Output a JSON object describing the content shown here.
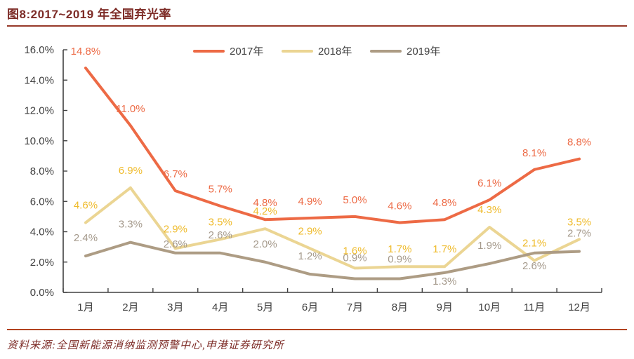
{
  "header": {
    "title": "图8:2017~2019 年全国弃光率"
  },
  "footer": {
    "source": "资料来源:全国新能源消纳监测预警中心,申港证券研究所"
  },
  "colors": {
    "title_text": "#7D2B26",
    "title_rule": "#97392A",
    "footer_rule": "#B2431F",
    "axis": "#404040",
    "tick_label": "#3F3F3F"
  },
  "chart_data": {
    "type": "line",
    "title": "图8:2017~2019 年全国弃光率",
    "xlabel": "",
    "ylabel": "",
    "ylim": [
      0,
      16
    ],
    "grid": false,
    "legend_position": "top",
    "y_ticks": [
      "16.0%",
      "14.0%",
      "12.0%",
      "10.0%",
      "8.0%",
      "6.0%",
      "4.0%",
      "2.0%",
      "0.0%"
    ],
    "categories": [
      "1月",
      "2月",
      "3月",
      "4月",
      "5月",
      "6月",
      "7月",
      "8月",
      "9月",
      "10月",
      "11月",
      "12月"
    ],
    "series": [
      {
        "name": "2017年",
        "color": "#ED6A45",
        "label_color": "#ED6A45",
        "values": [
          14.8,
          11.0,
          6.7,
          5.7,
          4.8,
          4.9,
          5.0,
          4.6,
          4.8,
          6.1,
          8.1,
          8.8
        ]
      },
      {
        "name": "2018年",
        "color": "#EBD593",
        "label_color": "#EFBB2C",
        "values": [
          4.6,
          6.9,
          2.9,
          3.5,
          4.2,
          2.9,
          1.6,
          1.7,
          1.7,
          4.3,
          2.1,
          3.5
        ]
      },
      {
        "name": "2019年",
        "color": "#AD9C84",
        "label_color": "#A59A8C",
        "values": [
          2.4,
          3.3,
          2.6,
          2.6,
          2.0,
          1.2,
          0.9,
          0.9,
          1.3,
          1.9,
          2.6,
          2.7
        ]
      }
    ]
  }
}
